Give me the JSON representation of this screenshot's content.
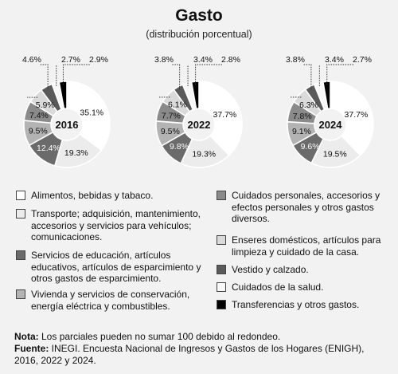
{
  "header": {
    "title": "Gasto",
    "subtitle": "(distribución porcentual)"
  },
  "categories": [
    {
      "label": "Alimentos, bebidas y tabaco.",
      "color": "#ffffff"
    },
    {
      "label": "Transporte; adquisición, mantenimiento, accesorios y servicios para vehículos; comunicaciones.",
      "color": "#ececec"
    },
    {
      "label": "Servicios de educación, artículos educativos, artículos de esparcimiento y otros gastos de esparcimiento.",
      "color": "#6b6b6b"
    },
    {
      "label": "Vivienda y servicios de conservación, energía eléctrica y combustibles.",
      "color": "#b3b3b3"
    },
    {
      "label": "Cuidados personales, accesorios y efectos personales y otros gastos diversos.",
      "color": "#8a8a8a"
    },
    {
      "label": "Enseres domésticos, artículos para limpieza y cuidado de la casa.",
      "color": "#dadada"
    },
    {
      "label": "Vestido y calzado.",
      "color": "#5a5a5a"
    },
    {
      "label": "Cuidados de la salud.",
      "color": "#f7f7f7"
    },
    {
      "label": "Transferencias y otros gastos.",
      "color": "#000000"
    }
  ],
  "chart_data": [
    {
      "type": "pie",
      "year": "2016",
      "values": [
        35.1,
        19.3,
        12.4,
        9.5,
        7.4,
        5.9,
        4.6,
        2.7,
        2.9
      ],
      "labels": [
        "35.1%",
        "19.3%",
        "12.4%",
        "9.5%",
        "7.4%",
        "5.9%",
        "4.6%",
        "2.7%",
        "2.9%"
      ]
    },
    {
      "type": "pie",
      "year": "2022",
      "values": [
        37.7,
        19.3,
        9.8,
        9.5,
        7.7,
        6.1,
        3.8,
        3.4,
        2.8
      ],
      "labels": [
        "37.7%",
        "19.3%",
        "9.8%",
        "9.5%",
        "7.7%",
        "6.1%",
        "3.8%",
        "3.4%",
        "2.8%"
      ]
    },
    {
      "type": "pie",
      "year": "2024",
      "values": [
        37.7,
        19.5,
        9.6,
        9.1,
        7.8,
        6.3,
        3.8,
        3.4,
        2.7
      ],
      "labels": [
        "37.7%",
        "19.5%",
        "9.6%",
        "9.1%",
        "7.8%",
        "6.3%",
        "3.8%",
        "3.4%",
        "2.7%"
      ]
    }
  ],
  "notes": {
    "nota_label": "Nota:",
    "nota_text": " Los parciales pueden no sumar 100 debido al redondeo.",
    "fuente_label": "Fuente:",
    "fuente_text": " INEGI. Encuesta Nacional de Ingresos y Gastos de los Hogares (ENIGH), 2016, 2022 y 2024."
  }
}
